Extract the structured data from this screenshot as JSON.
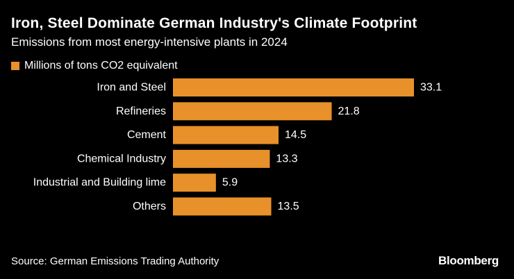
{
  "header": {
    "title": "Iron, Steel Dominate German Industry's Climate Footprint",
    "subtitle": "Emissions from most energy-intensive plants in 2024"
  },
  "legend": {
    "label": "Millions of tons CO2 equivalent"
  },
  "footer": {
    "source": "Source: German Emissions Trading Authority",
    "brand": "Bloomberg"
  },
  "colors": {
    "bar": "#E8902A",
    "background": "#000000",
    "text": "#FFFFFF"
  },
  "chart_data": {
    "type": "bar",
    "orientation": "horizontal",
    "title": "Iron, Steel Dominate German Industry's Climate Footprint",
    "subtitle": "Emissions from most energy-intensive plants in 2024",
    "xlabel": "",
    "ylabel": "",
    "grid": false,
    "legend_position": "top-left",
    "series": [
      {
        "name": "Millions of tons CO2 equivalent",
        "values": [
          33.1,
          21.8,
          14.5,
          13.3,
          5.9,
          13.5
        ]
      }
    ],
    "categories": [
      "Iron and Steel",
      "Refineries",
      "Cement",
      "Chemical Industry",
      "Industrial and Building lime",
      "Others"
    ],
    "values": [
      33.1,
      21.8,
      14.5,
      13.3,
      5.9,
      13.5
    ],
    "value_labels": [
      "33.1",
      "21.8",
      "14.5",
      "13.3",
      "5.9",
      "13.5"
    ],
    "xlim": [
      0,
      33.1
    ]
  }
}
